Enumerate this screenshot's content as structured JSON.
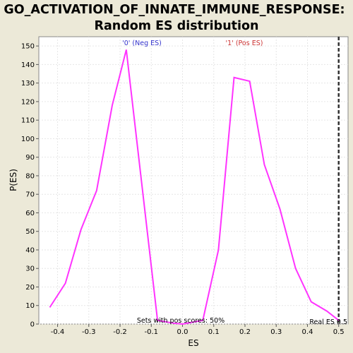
{
  "chart_data": {
    "type": "line",
    "title_line1": "GO_ACTIVATION_OF_INNATE_IMMUNE_RESPONSE:",
    "title_line2": "Random ES distribution",
    "xlabel": "ES",
    "ylabel": "P(ES)",
    "xlim": [
      -0.46,
      0.53
    ],
    "ylim": [
      0,
      155
    ],
    "xticks": [
      "-0.4",
      "-0.3",
      "-0.2",
      "-0.1",
      "0.0",
      "0.1",
      "0.2",
      "0.3",
      "0.4",
      "0.5"
    ],
    "xtick_values": [
      -0.4,
      -0.3,
      -0.2,
      -0.1,
      0.0,
      0.1,
      0.2,
      0.3,
      0.4,
      0.5
    ],
    "yticks": [
      "0",
      "10",
      "20",
      "30",
      "40",
      "50",
      "60",
      "70",
      "80",
      "90",
      "100",
      "110",
      "120",
      "130",
      "140",
      "150"
    ],
    "ytick_values": [
      0,
      10,
      20,
      30,
      40,
      50,
      60,
      70,
      80,
      90,
      100,
      110,
      120,
      130,
      140,
      150
    ],
    "grid": true,
    "series": [
      {
        "color": "#ff33ff",
        "x": [
          -0.425,
          -0.375,
          -0.325,
          -0.275,
          -0.225,
          -0.18,
          -0.13,
          -0.08,
          -0.03,
          0.0,
          0.065,
          0.115,
          0.165,
          0.215,
          0.262,
          0.312,
          0.362,
          0.412,
          0.462,
          0.5
        ],
        "y": [
          9,
          22,
          51,
          72,
          118,
          148,
          75,
          2,
          0.5,
          0,
          2,
          40,
          133,
          131,
          86,
          62,
          30,
          12,
          7,
          2
        ]
      }
    ],
    "real_es": {
      "x": 0.5,
      "color": "#333333"
    },
    "annotations": {
      "neg": {
        "text": "'0' (Neg ES)",
        "color": "#3333cc"
      },
      "pos": {
        "text": "'1' (Pos ES)",
        "color": "#cc3333"
      },
      "sets": {
        "text": "Sets with pos scores: 50%",
        "color": "#000000"
      },
      "real": {
        "text": "Real ES 0.5",
        "color": "#000000"
      }
    }
  }
}
